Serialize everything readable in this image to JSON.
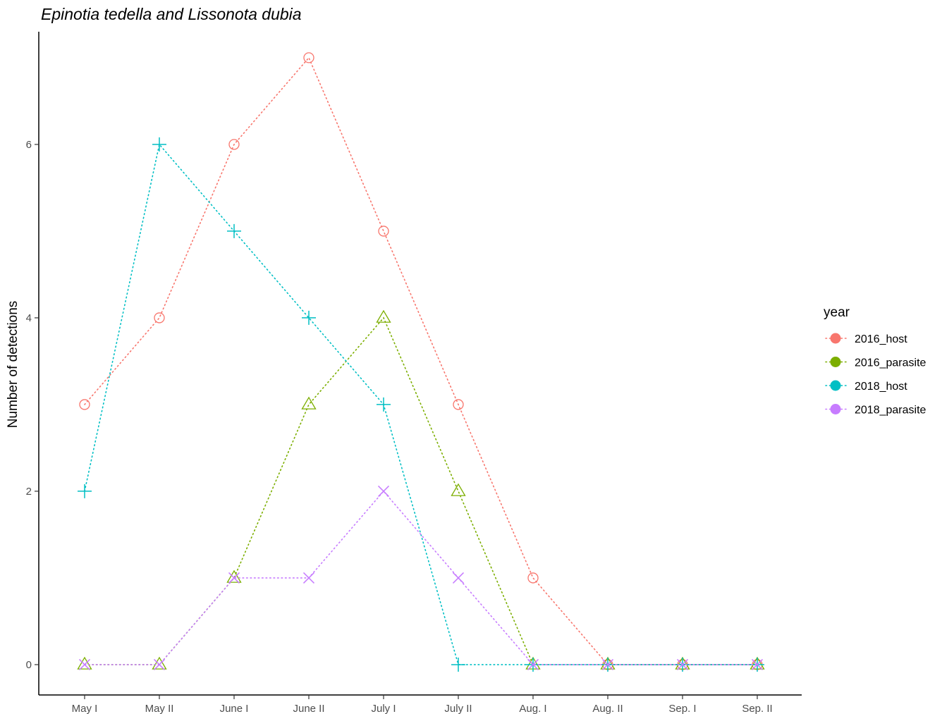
{
  "chart_data": {
    "type": "line",
    "title": "Epinotia tedella and Lissonota dubia",
    "xlabel": "",
    "ylabel": "Number of detections",
    "categories": [
      "May I",
      "May II",
      "June I",
      "June II",
      "July I",
      "July II",
      "Aug. I",
      "Aug. II",
      "Sep. I",
      "Sep. II"
    ],
    "yticks": [
      0,
      2,
      4,
      6
    ],
    "ylim": [
      -0.35,
      7.3
    ],
    "grid": false,
    "legend": {
      "title": "year",
      "placement": "right"
    },
    "series": [
      {
        "name": "2016_host",
        "color": "#F8766D",
        "marker": "circle",
        "values": [
          3,
          4,
          6,
          7,
          5,
          3,
          1,
          0,
          0,
          0
        ]
      },
      {
        "name": "2016_parasite",
        "color": "#7CAE00",
        "marker": "triangle",
        "values": [
          0,
          0,
          1,
          3,
          4,
          2,
          0,
          0,
          0,
          0
        ]
      },
      {
        "name": "2018_host",
        "color": "#00BFC4",
        "marker": "plus",
        "values": [
          2,
          6,
          5,
          4,
          3,
          0,
          0,
          0,
          0,
          0
        ]
      },
      {
        "name": "2018_parasite",
        "color": "#C77CFF",
        "marker": "cross",
        "values": [
          0,
          0,
          1,
          1,
          2,
          1,
          0,
          0,
          0,
          0
        ]
      }
    ]
  }
}
